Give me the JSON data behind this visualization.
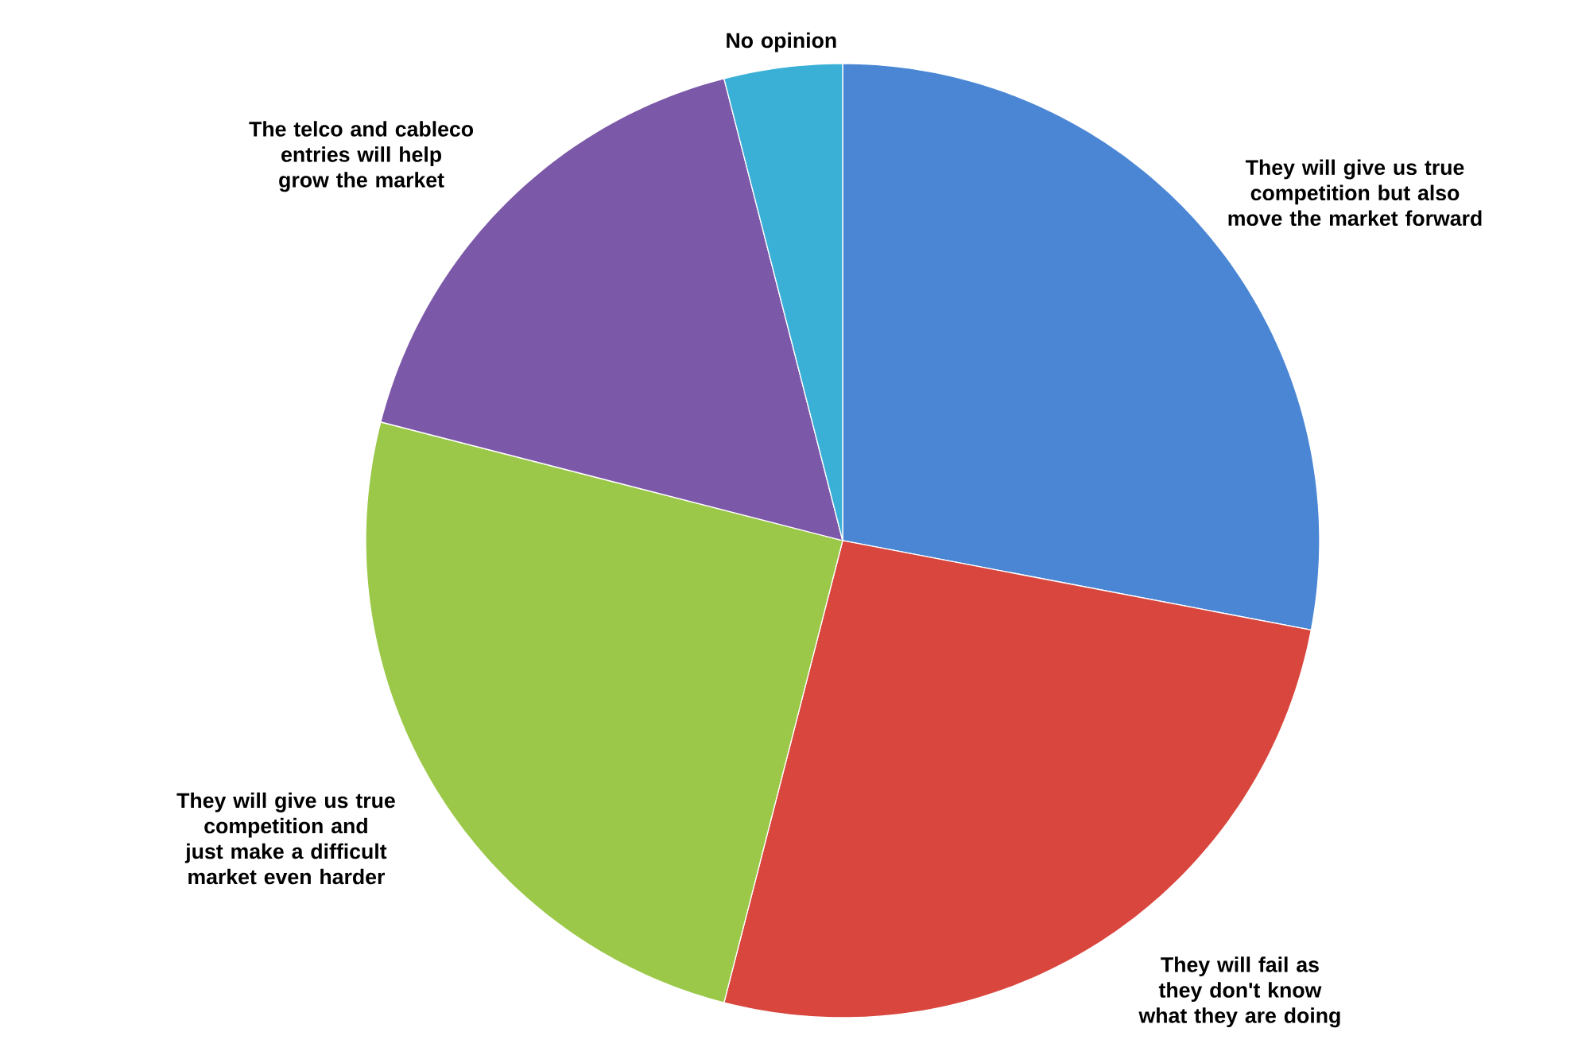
{
  "chart_data": {
    "type": "pie",
    "categories": [
      "They will give us true competition but also move the market forward",
      "They will fail as they don't know what they are doing",
      "They will give us true competition and just make a difficult market even harder",
      "The telco and cableco entries will help grow the market",
      "No opinion"
    ],
    "values": [
      28,
      26,
      25,
      17,
      4
    ],
    "colors": [
      "#4a86d4",
      "#d9463e",
      "#9bc848",
      "#7c58a8",
      "#3ab0d6"
    ]
  }
}
